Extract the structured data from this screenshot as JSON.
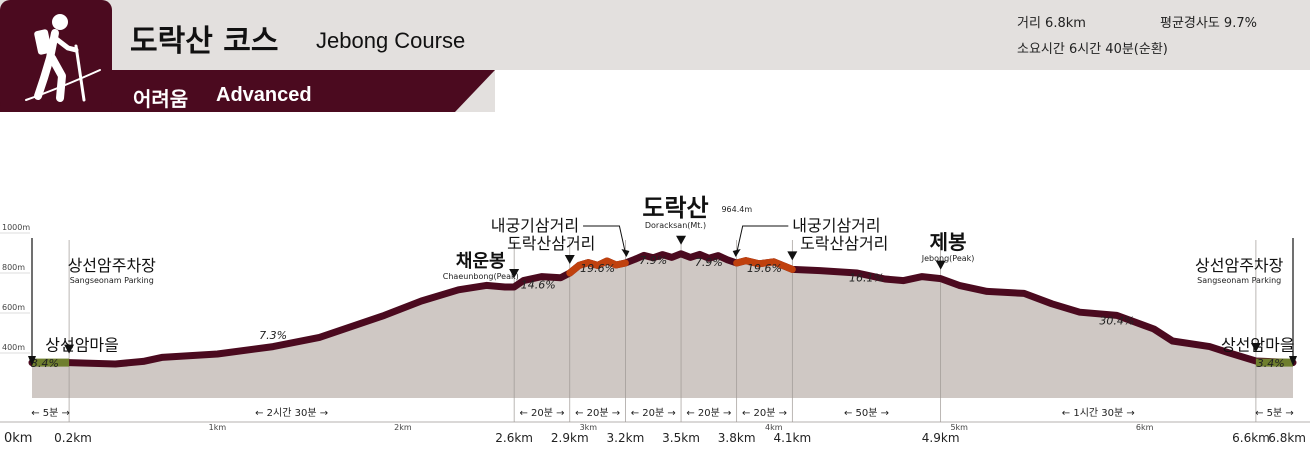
{
  "header": {
    "title_ko": "도락산 코스",
    "title_en": "Jebong Course",
    "difficulty_ko": "어려움",
    "difficulty_en": "Advanced",
    "distance": "거리 6.8km",
    "avg_slope": "평균경사도 9.7%",
    "duration": "소요시간 6시간 40분(순환)",
    "icon": "hiker-icon",
    "colors": {
      "brand": "#4b0a1f",
      "band": "#e3e0de"
    }
  },
  "chart_data": {
    "type": "area",
    "title": "",
    "ylim": [
      250,
      1000
    ],
    "xlim": [
      0,
      6.8
    ],
    "yticks": [
      {
        "v": 400,
        "label": "400m"
      },
      {
        "v": 600,
        "label": "600m"
      },
      {
        "v": 800,
        "label": "800m"
      },
      {
        "v": 1000,
        "label": "1000m"
      }
    ],
    "km_ticks": [
      {
        "x": 1,
        "label": "1km"
      },
      {
        "x": 2,
        "label": "2km"
      },
      {
        "x": 3,
        "label": "3km"
      },
      {
        "x": 4,
        "label": "4km"
      },
      {
        "x": 5,
        "label": "5km"
      },
      {
        "x": 6,
        "label": "6km"
      }
    ],
    "profile": [
      [
        0,
        352
      ],
      [
        0.2,
        352
      ],
      [
        0.45,
        345
      ],
      [
        0.6,
        358
      ],
      [
        0.7,
        378
      ],
      [
        1.0,
        395
      ],
      [
        1.3,
        432
      ],
      [
        1.55,
        478
      ],
      [
        1.9,
        588
      ],
      [
        2.1,
        660
      ],
      [
        2.3,
        716
      ],
      [
        2.45,
        738
      ],
      [
        2.55,
        730
      ],
      [
        2.6,
        730
      ],
      [
        2.65,
        762
      ],
      [
        2.75,
        782
      ],
      [
        2.85,
        776
      ],
      [
        2.9,
        800
      ],
      [
        2.95,
        838
      ],
      [
        3.0,
        852
      ],
      [
        3.05,
        838
      ],
      [
        3.1,
        860
      ],
      [
        3.15,
        840
      ],
      [
        3.2,
        850
      ],
      [
        3.25,
        868
      ],
      [
        3.3,
        888
      ],
      [
        3.35,
        876
      ],
      [
        3.4,
        892
      ],
      [
        3.45,
        878
      ],
      [
        3.5,
        896
      ],
      [
        3.55,
        878
      ],
      [
        3.6,
        893
      ],
      [
        3.65,
        874
      ],
      [
        3.7,
        887
      ],
      [
        3.75,
        866
      ],
      [
        3.8,
        850
      ],
      [
        3.85,
        862
      ],
      [
        3.92,
        846
      ],
      [
        4.0,
        856
      ],
      [
        4.1,
        818
      ],
      [
        4.25,
        812
      ],
      [
        4.45,
        800
      ],
      [
        4.6,
        770
      ],
      [
        4.7,
        762
      ],
      [
        4.8,
        782
      ],
      [
        4.9,
        772
      ],
      [
        5.0,
        738
      ],
      [
        5.15,
        708
      ],
      [
        5.35,
        698
      ],
      [
        5.5,
        646
      ],
      [
        5.65,
        604
      ],
      [
        5.85,
        588
      ],
      [
        6.05,
        520
      ],
      [
        6.15,
        460
      ],
      [
        6.35,
        432
      ],
      [
        6.45,
        402
      ],
      [
        6.6,
        360
      ],
      [
        6.8,
        352
      ]
    ],
    "highlights": [
      {
        "x0": 2.9,
        "x1": 3.2,
        "color": "#c0410e"
      },
      {
        "x0": 3.8,
        "x1": 4.1,
        "color": "#c0410e"
      }
    ],
    "ends": [
      {
        "x0": 0,
        "x1": 0.2,
        "color": "#6f7f2e"
      },
      {
        "x0": 6.6,
        "x1": 6.8,
        "color": "#6f7f2e"
      }
    ],
    "section_x": [
      0.2,
      2.6,
      2.9,
      3.2,
      3.5,
      3.8,
      4.1,
      4.9,
      6.6
    ],
    "distance_labels": [
      {
        "x": 0,
        "label": "0km"
      },
      {
        "x": 0.2,
        "label": "0.2km"
      },
      {
        "x": 2.6,
        "label": "2.6km"
      },
      {
        "x": 2.9,
        "label": "2.9km"
      },
      {
        "x": 3.2,
        "label": "3.2km"
      },
      {
        "x": 3.5,
        "label": "3.5km"
      },
      {
        "x": 3.8,
        "label": "3.8km"
      },
      {
        "x": 4.1,
        "label": "4.1km"
      },
      {
        "x": 4.9,
        "label": "4.9km"
      },
      {
        "x": 6.6,
        "label": "6.6km"
      },
      {
        "x": 6.8,
        "label": "6.8km"
      }
    ],
    "times": [
      {
        "x0": 0,
        "x1": 0.2,
        "label": "5분"
      },
      {
        "x0": 0.2,
        "x1": 2.6,
        "label": "2시간 30분"
      },
      {
        "x0": 2.6,
        "x1": 2.9,
        "label": "20분"
      },
      {
        "x0": 2.9,
        "x1": 3.2,
        "label": "20분"
      },
      {
        "x0": 3.2,
        "x1": 3.5,
        "label": "20분"
      },
      {
        "x0": 3.5,
        "x1": 3.8,
        "label": "20분"
      },
      {
        "x0": 3.8,
        "x1": 4.1,
        "label": "20분"
      },
      {
        "x0": 4.1,
        "x1": 4.9,
        "label": "50분"
      },
      {
        "x0": 4.9,
        "x1": 6.6,
        "label": "1시간 30분"
      },
      {
        "x0": 6.6,
        "x1": 6.8,
        "label": "5분"
      }
    ],
    "slopes": [
      {
        "x": 0.07,
        "y": 330,
        "label": "3.4%"
      },
      {
        "x": 1.3,
        "y": 470,
        "label": "7.3%"
      },
      {
        "x": 2.73,
        "y": 722,
        "label": "14.6%"
      },
      {
        "x": 3.05,
        "y": 806,
        "label": "19.6%"
      },
      {
        "x": 3.35,
        "y": 846,
        "label": "7.9%"
      },
      {
        "x": 3.65,
        "y": 834,
        "label": "7.9%"
      },
      {
        "x": 3.95,
        "y": 806,
        "label": "19.6%"
      },
      {
        "x": 4.5,
        "y": 758,
        "label": "16.1%"
      },
      {
        "x": 5.85,
        "y": 542,
        "label": "30.4%"
      },
      {
        "x": 6.68,
        "y": 330,
        "label": "3.4%"
      }
    ],
    "places": [
      {
        "ko": "상선암마을",
        "en": "",
        "lx": 0.27,
        "ly": 412,
        "size": 16,
        "mx": 0.2,
        "arrow": "down"
      },
      {
        "ko": "상선암주차장",
        "en": "Sangseonam Parking",
        "lx": 0.43,
        "ly": 810,
        "size": 16,
        "mx": 0.0,
        "arrow": "left-line"
      },
      {
        "ko": "채운봉",
        "en": "Chaeunbong(Peak)",
        "lx": 2.42,
        "ly": 830,
        "size": 18,
        "mx": 2.6,
        "arrow": "down"
      },
      {
        "ko": "도락산삼거리",
        "en": "",
        "lx": 2.8,
        "ly": 920,
        "size": 16,
        "mx": 2.9,
        "arrow": "down"
      },
      {
        "ko": "내궁기삼거리",
        "en": "",
        "lx": 2.95,
        "ly": 1010,
        "size": 16,
        "mx": 3.2,
        "arrow": "leader-left"
      },
      {
        "ko": "도락산",
        "en": "Doracksan(Mt.)",
        "lx": 3.47,
        "ly": 1085,
        "size": 24,
        "mx": 3.5,
        "arrow": "down"
      },
      {
        "ko": "내궁기삼거리",
        "en": "",
        "lx": 4.1,
        "ly": 1010,
        "size": 16,
        "mx": 3.8,
        "arrow": "leader-right"
      },
      {
        "ko": "도락산삼거리",
        "en": "",
        "lx": 4.38,
        "ly": 920,
        "size": 16,
        "mx": 4.1,
        "arrow": "down"
      },
      {
        "ko": "제봉",
        "en": "Jebong(Peak)",
        "lx": 4.94,
        "ly": 920,
        "size": 20,
        "mx": 4.9,
        "arrow": "down"
      },
      {
        "ko": "상선암주차장",
        "en": "Sangseonam Parking",
        "lx": 6.51,
        "ly": 810,
        "size": 16,
        "mx": 6.8,
        "arrow": "right-line"
      },
      {
        "ko": "상선암마을",
        "en": "",
        "lx": 6.61,
        "ly": 412,
        "size": 16,
        "mx": 6.6,
        "arrow": "down"
      }
    ],
    "summit_height": "964.4m"
  }
}
